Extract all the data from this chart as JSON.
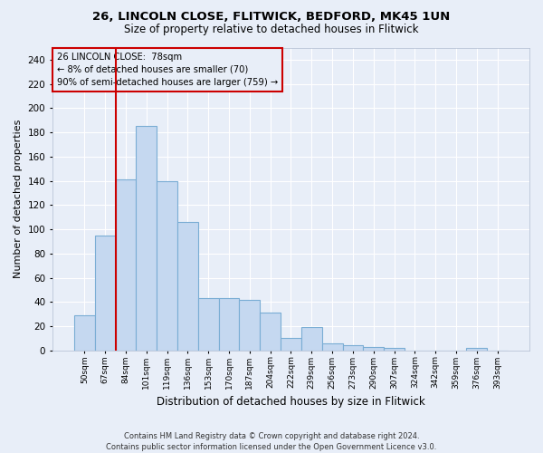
{
  "title1": "26, LINCOLN CLOSE, FLITWICK, BEDFORD, MK45 1UN",
  "title2": "Size of property relative to detached houses in Flitwick",
  "xlabel": "Distribution of detached houses by size in Flitwick",
  "ylabel": "Number of detached properties",
  "footer1": "Contains HM Land Registry data © Crown copyright and database right 2024.",
  "footer2": "Contains public sector information licensed under the Open Government Licence v3.0.",
  "annotation_line1": "26 LINCOLN CLOSE:  78sqm",
  "annotation_line2": "← 8% of detached houses are smaller (70)",
  "annotation_line3": "90% of semi-detached houses are larger (759) →",
  "bin_labels": [
    "50sqm",
    "67sqm",
    "84sqm",
    "101sqm",
    "119sqm",
    "136sqm",
    "153sqm",
    "170sqm",
    "187sqm",
    "204sqm",
    "222sqm",
    "239sqm",
    "256sqm",
    "273sqm",
    "290sqm",
    "307sqm",
    "324sqm",
    "342sqm",
    "359sqm",
    "376sqm",
    "393sqm"
  ],
  "bar_heights": [
    29,
    95,
    141,
    185,
    140,
    106,
    43,
    43,
    42,
    31,
    10,
    19,
    6,
    4,
    3,
    2,
    0,
    0,
    0,
    2,
    0
  ],
  "bar_color": "#c5d8f0",
  "bar_edge_color": "#7aadd4",
  "vline_x_index": 2,
  "vline_color": "#cc0000",
  "ylim": [
    0,
    250
  ],
  "yticks": [
    0,
    20,
    40,
    60,
    80,
    100,
    120,
    140,
    160,
    180,
    200,
    220,
    240
  ],
  "annotation_box_color": "#cc0000",
  "bg_color": "#e8eef8",
  "grid_color": "#ffffff",
  "fig_width": 6.0,
  "fig_height": 5.0
}
